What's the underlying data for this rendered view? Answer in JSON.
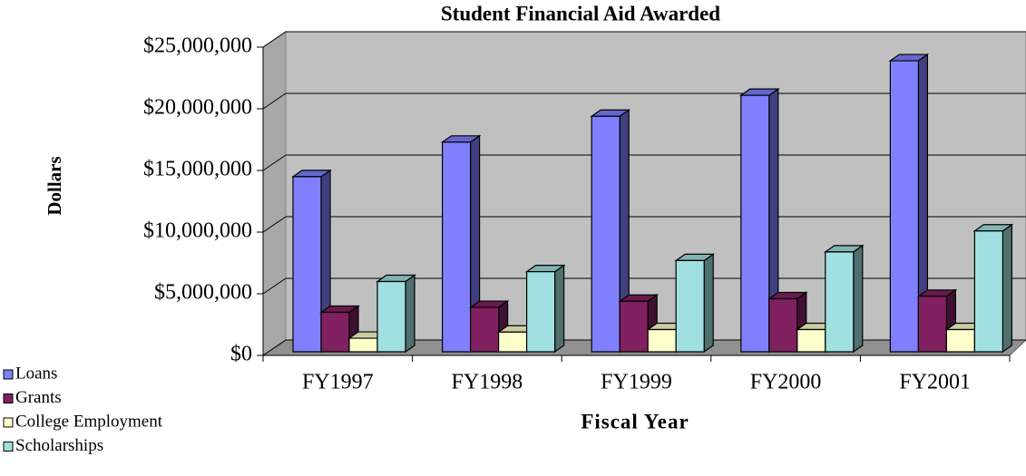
{
  "chart_data": {
    "type": "bar3d",
    "title": "Student Financial Aid Awarded",
    "x_label": "Fiscal Year",
    "y_label": "Dollars",
    "categories": [
      "FY1997",
      "FY1998",
      "FY1999",
      "FY2000",
      "FY2001"
    ],
    "series": [
      {
        "name": "Loans",
        "color": "#8080ff",
        "values": [
          14200000,
          17000000,
          19100000,
          20800000,
          23600000
        ]
      },
      {
        "name": "Grants",
        "color": "#802060",
        "values": [
          3200000,
          3600000,
          4100000,
          4300000,
          4500000
        ]
      },
      {
        "name": "College Employment",
        "color": "#ffffcc",
        "values": [
          1100000,
          1600000,
          1800000,
          1800000,
          1800000
        ]
      },
      {
        "name": "Scholarships",
        "color": "#a0e0e0",
        "values": [
          5700000,
          6500000,
          7400000,
          8100000,
          9800000
        ]
      }
    ],
    "ylim": [
      0,
      25000000
    ],
    "yticks": [
      {
        "value": 0,
        "label": "$0"
      },
      {
        "value": 5000000,
        "label": "$5,000,000"
      },
      {
        "value": 10000000,
        "label": "$10,000,000"
      },
      {
        "value": 15000000,
        "label": "$15,000,000"
      },
      {
        "value": 20000000,
        "label": "$20,000,000"
      },
      {
        "value": 25000000,
        "label": "$25,000,000"
      }
    ],
    "grid": true,
    "legend": "bottom-left"
  }
}
